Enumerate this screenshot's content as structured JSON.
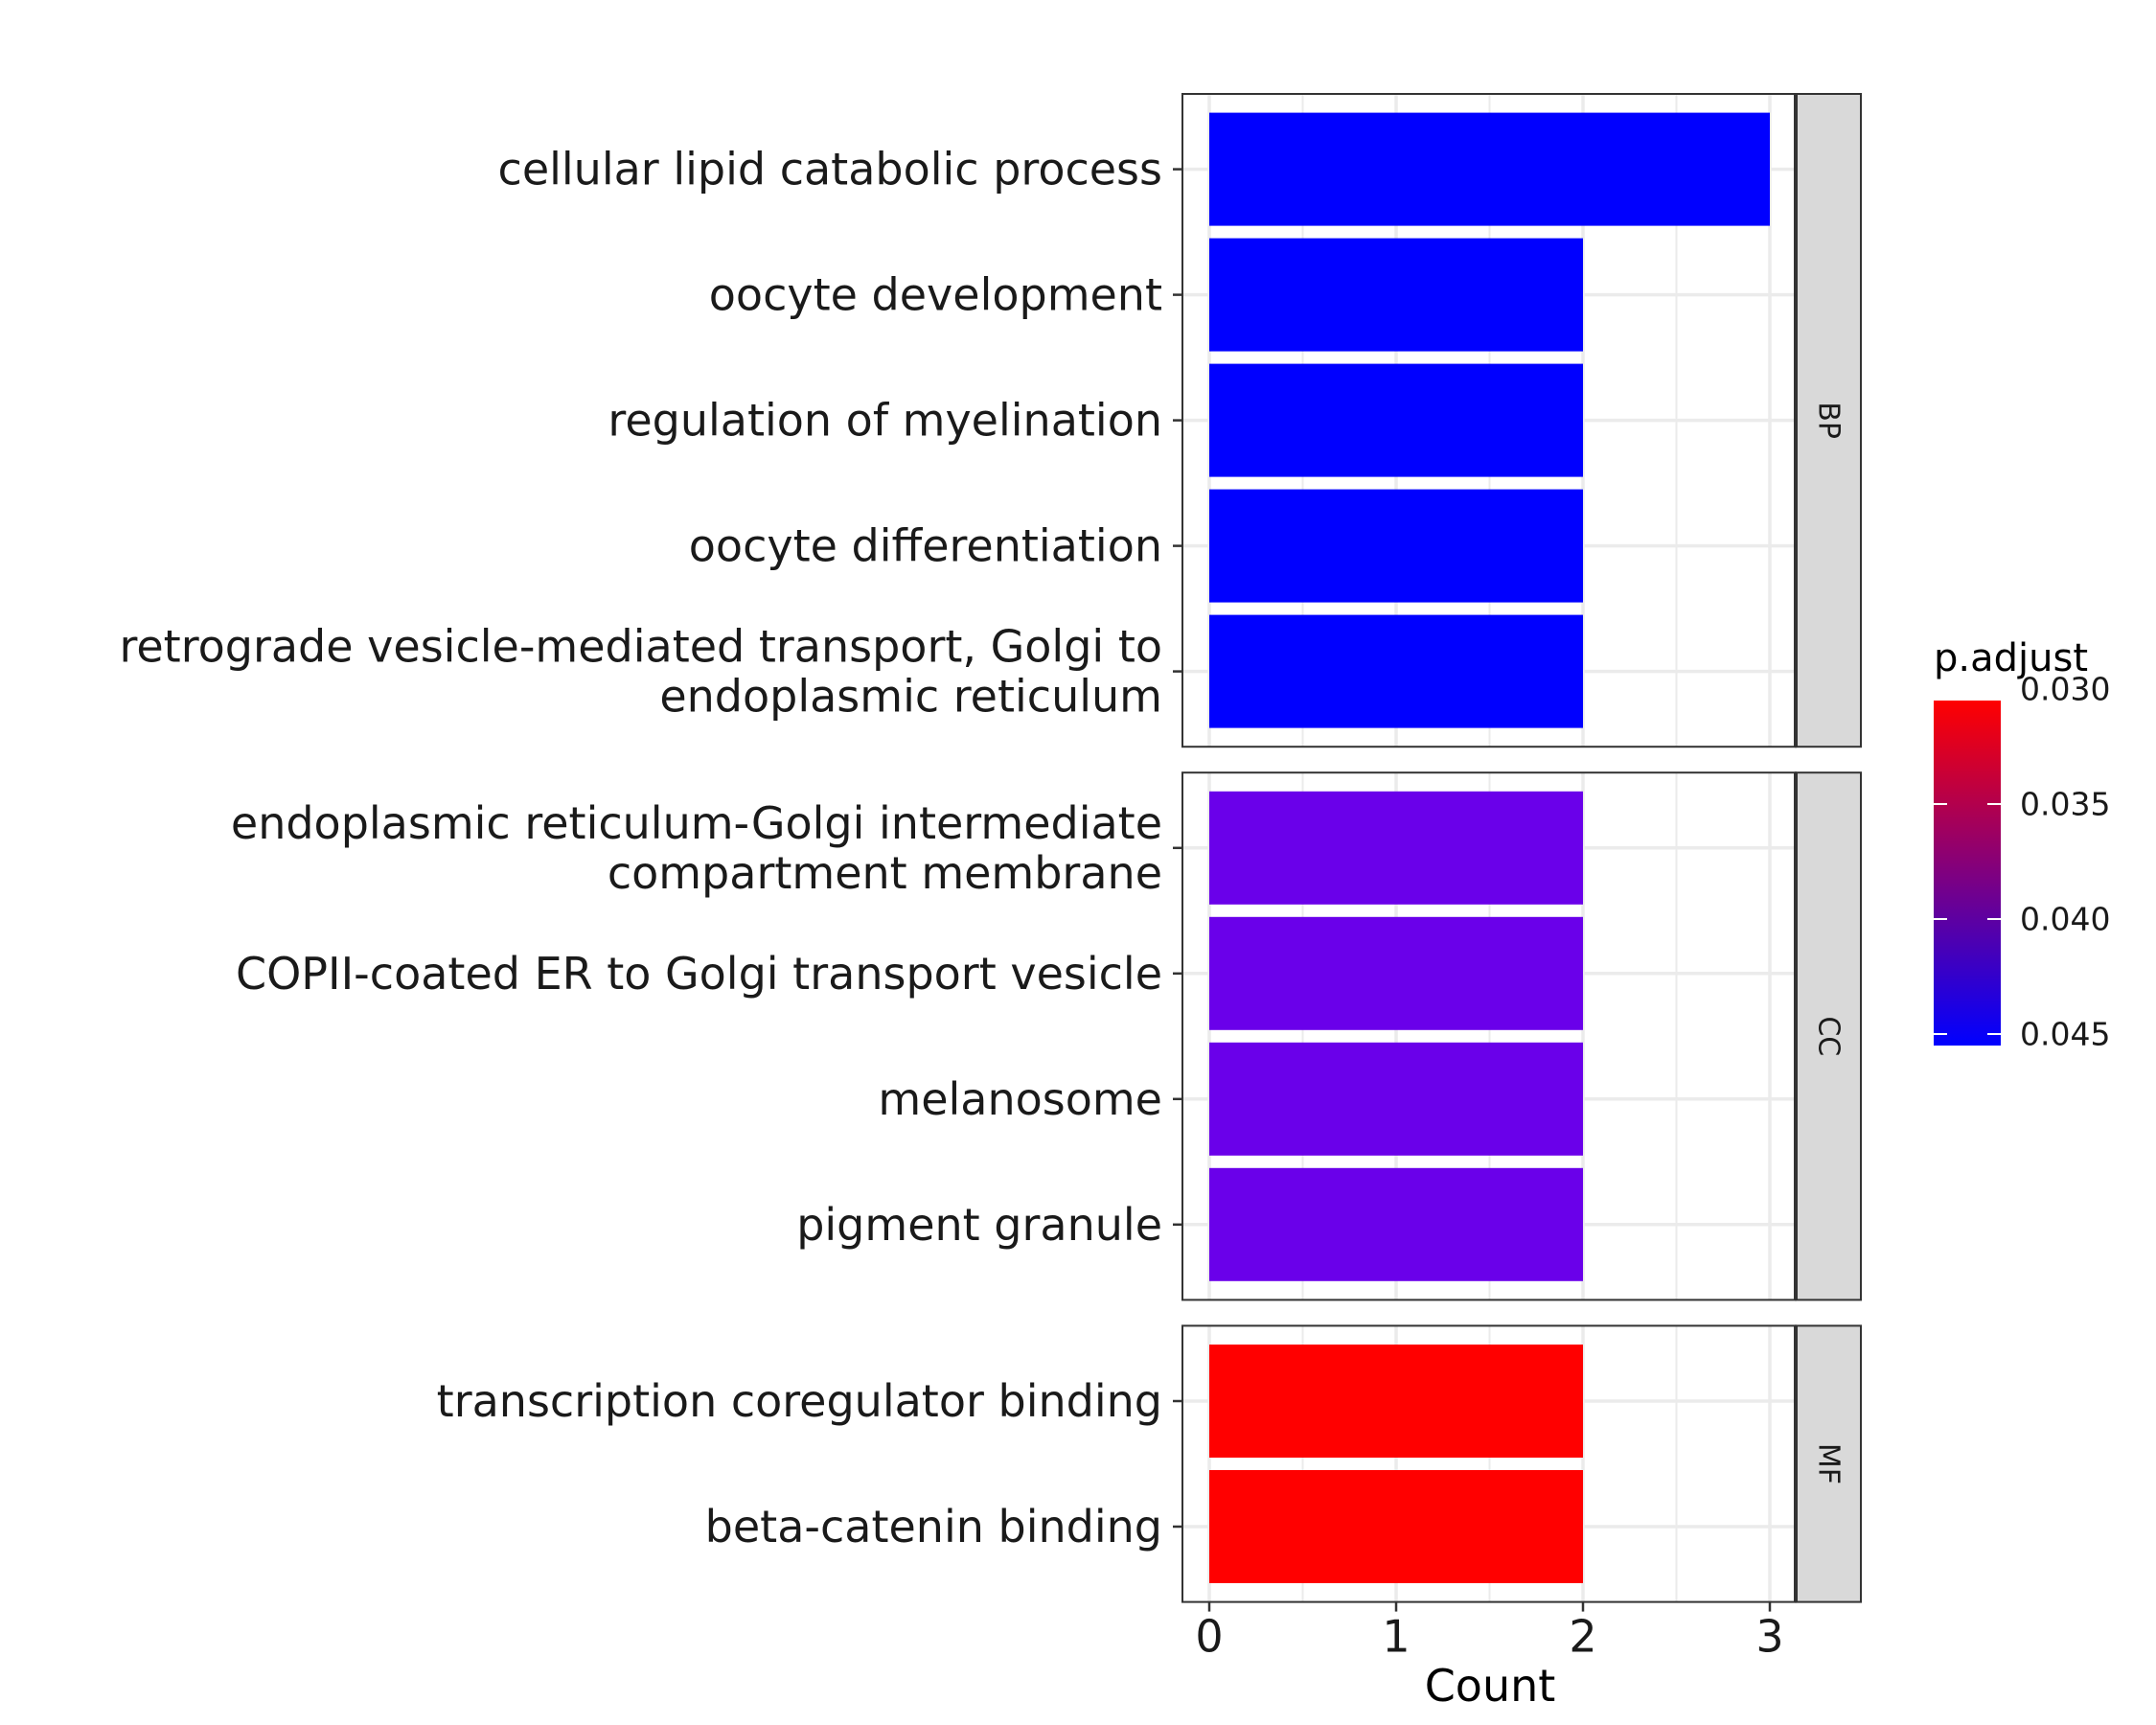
{
  "chart_data": {
    "type": "bar",
    "orientation": "horizontal",
    "xlabel": "Count",
    "ylabel": "",
    "xlim": [
      0,
      3
    ],
    "x_ticks": [
      "0",
      "1",
      "2",
      "3"
    ],
    "grid": true,
    "facets": [
      {
        "name": "BP",
        "categories": [
          [
            "cellular lipid catabolic process"
          ],
          [
            "oocyte development"
          ],
          [
            "regulation of myelination"
          ],
          [
            "oocyte differentiation"
          ],
          [
            "retrograde vesicle-mediated transport, Golgi to",
            "endoplasmic reticulum"
          ]
        ],
        "values": [
          3,
          2,
          2,
          2,
          2
        ],
        "p_adjust": [
          0.0455,
          0.0455,
          0.0455,
          0.0455,
          0.0455
        ],
        "colors": [
          "#0000FF",
          "#0000FF",
          "#0000FF",
          "#0000FF",
          "#0000FF"
        ]
      },
      {
        "name": "CC",
        "categories": [
          [
            "endoplasmic reticulum-Golgi intermediate",
            "compartment membrane"
          ],
          [
            "COPII-coated ER to Golgi transport vesicle"
          ],
          [
            "melanosome"
          ],
          [
            "pigment granule"
          ]
        ],
        "values": [
          2,
          2,
          2,
          2
        ],
        "p_adjust": [
          0.0445,
          0.0445,
          0.0445,
          0.0445
        ],
        "colors": [
          "#6A00EA",
          "#6A00EA",
          "#6A00EA",
          "#6A00EA"
        ]
      },
      {
        "name": "MF",
        "categories": [
          [
            "transcription coregulator binding"
          ],
          [
            "beta-catenin binding"
          ]
        ],
        "values": [
          2,
          2
        ],
        "p_adjust": [
          0.0305,
          0.0305
        ],
        "colors": [
          "#FF0000",
          "#FF0000"
        ]
      }
    ],
    "legend": {
      "title": "p.adjust",
      "position": "right",
      "type": "colorbar",
      "ticks": [
        "0.030",
        "0.035",
        "0.040",
        "0.045"
      ],
      "tick_values": [
        0.03,
        0.035,
        0.04,
        0.045
      ],
      "range": [
        0.0455,
        0.0305
      ],
      "color_low": "#0000FF",
      "color_high": "#FF0000"
    }
  }
}
